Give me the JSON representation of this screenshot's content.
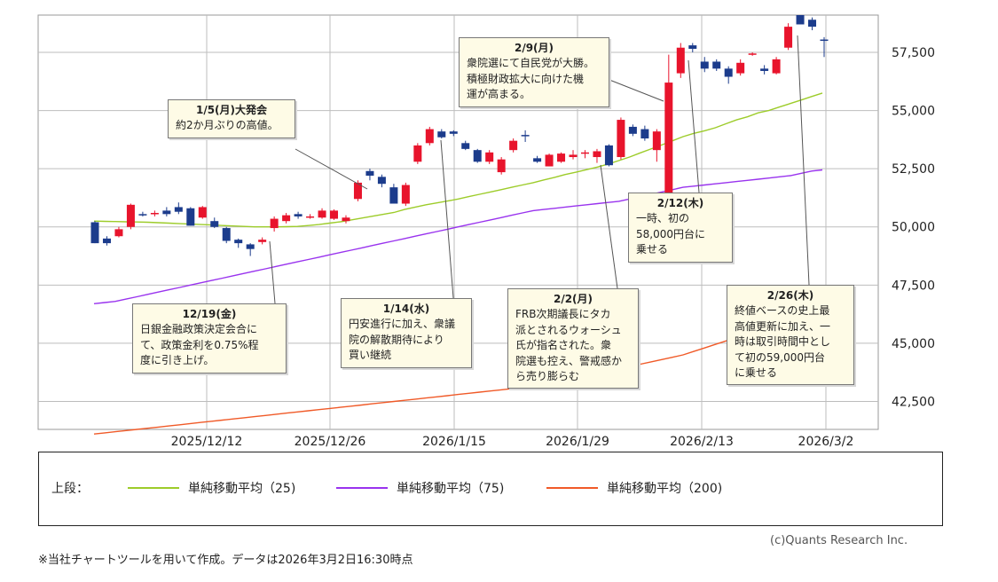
{
  "chart_data": {
    "type": "candlestick",
    "y_ticks": [
      42500,
      45000,
      47500,
      50000,
      52500,
      55000,
      57500
    ],
    "y_tick_labels": [
      "42,500",
      "45,000",
      "47,500",
      "50,000",
      "52,500",
      "55,000",
      "57,500"
    ],
    "ylim": [
      41300,
      59100
    ],
    "x_tick_labels": [
      "2025/12/12",
      "2025/12/26",
      "2026/1/15",
      "2026/1/29",
      "2026/2/13",
      "2026/3/2"
    ],
    "grid": true,
    "legend_placement": "bottom",
    "up_color": "#e8142c",
    "down_color": "#1c3c8c",
    "candles": [
      {
        "o": 50200,
        "h": 50250,
        "l": 49300,
        "c": 49300
      },
      {
        "o": 49500,
        "h": 49600,
        "l": 49200,
        "c": 49300
      },
      {
        "o": 49600,
        "h": 50000,
        "l": 49550,
        "c": 49900
      },
      {
        "o": 50000,
        "h": 51000,
        "l": 49900,
        "c": 50950
      },
      {
        "o": 50550,
        "h": 50650,
        "l": 50450,
        "c": 50500
      },
      {
        "o": 50550,
        "h": 50700,
        "l": 50450,
        "c": 50600
      },
      {
        "o": 50700,
        "h": 50850,
        "l": 50450,
        "c": 50550
      },
      {
        "o": 50850,
        "h": 51050,
        "l": 50550,
        "c": 50650
      },
      {
        "o": 50800,
        "h": 50850,
        "l": 50050,
        "c": 50050
      },
      {
        "o": 50400,
        "h": 50900,
        "l": 50350,
        "c": 50850
      },
      {
        "o": 50250,
        "h": 50400,
        "l": 49950,
        "c": 50000
      },
      {
        "o": 49950,
        "h": 50000,
        "l": 49300,
        "c": 49400
      },
      {
        "o": 49450,
        "h": 49500,
        "l": 49100,
        "c": 49300
      },
      {
        "o": 49250,
        "h": 49300,
        "l": 48750,
        "c": 49050
      },
      {
        "o": 49350,
        "h": 49550,
        "l": 49250,
        "c": 49450
      },
      {
        "o": 49950,
        "h": 50450,
        "l": 49800,
        "c": 50350
      },
      {
        "o": 50250,
        "h": 50600,
        "l": 50150,
        "c": 50500
      },
      {
        "o": 50550,
        "h": 50650,
        "l": 50350,
        "c": 50450
      },
      {
        "o": 50450,
        "h": 50550,
        "l": 50350,
        "c": 50450
      },
      {
        "o": 50400,
        "h": 50800,
        "l": 50350,
        "c": 50700
      },
      {
        "o": 50350,
        "h": 50750,
        "l": 50300,
        "c": 50700
      },
      {
        "o": 50250,
        "h": 50500,
        "l": 50150,
        "c": 50400
      },
      {
        "o": 51200,
        "h": 52000,
        "l": 51100,
        "c": 51900
      },
      {
        "o": 52400,
        "h": 52500,
        "l": 52000,
        "c": 52200
      },
      {
        "o": 52150,
        "h": 52250,
        "l": 51700,
        "c": 51850
      },
      {
        "o": 51700,
        "h": 51850,
        "l": 51000,
        "c": 51000
      },
      {
        "o": 51000,
        "h": 51900,
        "l": 50900,
        "c": 51800
      },
      {
        "o": 52800,
        "h": 53600,
        "l": 52700,
        "c": 53500
      },
      {
        "o": 53600,
        "h": 54300,
        "l": 53500,
        "c": 54200
      },
      {
        "o": 54100,
        "h": 54200,
        "l": 53800,
        "c": 53850
      },
      {
        "o": 54100,
        "h": 54150,
        "l": 53900,
        "c": 54000
      },
      {
        "o": 53600,
        "h": 53700,
        "l": 53300,
        "c": 53350
      },
      {
        "o": 53300,
        "h": 53350,
        "l": 52750,
        "c": 52800
      },
      {
        "o": 52800,
        "h": 53300,
        "l": 52700,
        "c": 53200
      },
      {
        "o": 52350,
        "h": 53000,
        "l": 52250,
        "c": 52900
      },
      {
        "o": 53300,
        "h": 53800,
        "l": 53200,
        "c": 53700
      },
      {
        "o": 53950,
        "h": 54150,
        "l": 53650,
        "c": 53900
      },
      {
        "o": 52950,
        "h": 53050,
        "l": 52750,
        "c": 52800
      },
      {
        "o": 52600,
        "h": 53150,
        "l": 52600,
        "c": 53100
      },
      {
        "o": 52800,
        "h": 53200,
        "l": 52750,
        "c": 53150
      },
      {
        "o": 53000,
        "h": 53300,
        "l": 52900,
        "c": 53100
      },
      {
        "o": 53150,
        "h": 53300,
        "l": 52950,
        "c": 53200
      },
      {
        "o": 53000,
        "h": 53350,
        "l": 52750,
        "c": 53250
      },
      {
        "o": 53500,
        "h": 53550,
        "l": 52600,
        "c": 52650
      },
      {
        "o": 53000,
        "h": 54700,
        "l": 52900,
        "c": 54600
      },
      {
        "o": 54300,
        "h": 54400,
        "l": 53900,
        "c": 54000
      },
      {
        "o": 54200,
        "h": 54350,
        "l": 53700,
        "c": 53800
      },
      {
        "o": 53300,
        "h": 54200,
        "l": 52800,
        "c": 54100
      },
      {
        "o": 50900,
        "h": 57400,
        "l": 50800,
        "c": 56200
      },
      {
        "o": 56600,
        "h": 57900,
        "l": 56400,
        "c": 57700
      },
      {
        "o": 57800,
        "h": 57900,
        "l": 57500,
        "c": 57650
      },
      {
        "o": 57100,
        "h": 57300,
        "l": 56650,
        "c": 56800
      },
      {
        "o": 57100,
        "h": 57200,
        "l": 56700,
        "c": 56800
      },
      {
        "o": 56800,
        "h": 56900,
        "l": 56150,
        "c": 56450
      },
      {
        "o": 56600,
        "h": 57200,
        "l": 56500,
        "c": 57050
      },
      {
        "o": 57450,
        "h": 57500,
        "l": 57350,
        "c": 57450
      },
      {
        "o": 56800,
        "h": 56950,
        "l": 56550,
        "c": 56700
      },
      {
        "o": 56600,
        "h": 57300,
        "l": 56550,
        "c": 57200
      },
      {
        "o": 57700,
        "h": 58750,
        "l": 57600,
        "c": 58600
      },
      {
        "o": 59100,
        "h": 59100,
        "l": 58700,
        "c": 58700
      },
      {
        "o": 58900,
        "h": 59000,
        "l": 58450,
        "c": 58600
      },
      {
        "o": 58050,
        "h": 58150,
        "l": 57300,
        "c": 58000
      }
    ],
    "series": [
      {
        "name": "単純移動平均（25)",
        "color": "#9dcc2a",
        "values": [
          50250,
          50240,
          50230,
          50220,
          50210,
          50200,
          50180,
          50160,
          50140,
          50120,
          50100,
          50080,
          50060,
          50040,
          50020,
          50000,
          50000,
          50000,
          50010,
          50020,
          50060,
          50100,
          50160,
          50220,
          50300,
          50380,
          50460,
          50540,
          50620,
          50750,
          50850,
          50950,
          51030,
          51110,
          51200,
          51300,
          51400,
          51500,
          51600,
          51700,
          51800,
          51900,
          52020,
          52130,
          52250,
          52350,
          52460,
          52570,
          52700,
          52850,
          53000,
          53180,
          53350,
          53520,
          53700,
          53880,
          54020,
          54130,
          54260,
          54430,
          54600,
          54730,
          54900,
          55000,
          55150,
          55300,
          55450,
          55600,
          55750
        ]
      },
      {
        "name": "単純移動平均（75)",
        "color": "#9933ee",
        "values": [
          46700,
          46750,
          46800,
          46900,
          47000,
          47100,
          47200,
          47300,
          47400,
          47500,
          47600,
          47700,
          47800,
          47900,
          48000,
          48100,
          48200,
          48300,
          48400,
          48500,
          48600,
          48700,
          48800,
          48900,
          49000,
          49100,
          49200,
          49300,
          49400,
          49500,
          49600,
          49700,
          49800,
          49900,
          50000,
          50100,
          50200,
          50300,
          50400,
          50500,
          50600,
          50700,
          50750,
          50800,
          50850,
          50900,
          50950,
          51000,
          51050,
          51100,
          51200,
          51300,
          51400,
          51500,
          51600,
          51700,
          51750,
          51800,
          51850,
          51900,
          51950,
          52000,
          52050,
          52100,
          52150,
          52200,
          52300,
          52400,
          52450
        ]
      },
      {
        "name": "単純移動平均（200)",
        "color": "#f05a28",
        "values": [
          41100,
          41150,
          41200,
          41250,
          41300,
          41350,
          41400,
          41450,
          41500,
          41550,
          41600,
          41650,
          41700,
          41750,
          41800,
          41850,
          41900,
          41950,
          42000,
          42050,
          42100,
          42150,
          42200,
          42250,
          42300,
          42350,
          42400,
          42450,
          42500,
          42550,
          42600,
          42650,
          42700,
          42750,
          42800,
          42850,
          42900,
          42950,
          43000,
          43050,
          43100,
          43150,
          43200,
          43300,
          43400,
          43500,
          43600,
          43700,
          43800,
          43900,
          44000,
          44100,
          44200,
          44300,
          44400,
          44500,
          44650,
          44800,
          44950,
          45100,
          45250,
          45400,
          45550,
          45700,
          45850,
          46000,
          46150,
          46300,
          46450
        ]
      }
    ],
    "annotations": [
      {
        "date": "1/5(月)大発会",
        "text": "約2か月ぶりの高値。"
      },
      {
        "date": "2/9(月)",
        "text": "衆院選にて自民党が大勝。\n積極財政拡大に向けた機\n運が高まる。"
      },
      {
        "date": "2/12(木)",
        "text": "一時、初の\n58,000円台に\n乗せる"
      },
      {
        "date": "12/19(金)",
        "text": "日銀金融政策決定会合に\nて、政策金利を0.75%程\n度に引き上げ。"
      },
      {
        "date": "1/14(水)",
        "text": "円安進行に加え、衆議\n院の解散期待により\n買い継続"
      },
      {
        "date": "2/2(月)",
        "text": "FRB次期議長にタカ\n派とされるウォーシュ\n氏が指名された。衆\n院選も控え、警戒感か\nら売り膨らむ"
      },
      {
        "date": "2/26(木)",
        "text": "終値ベースの史上最\n高値更新に加え、一\n時は取引時間中とし\nて初の59,000円台\nに乗せる"
      }
    ]
  },
  "legend": {
    "prefix": "上段："
  },
  "credit": "(c)Quants Research Inc.",
  "note": "※当社チャートツールを用いて作成。データは2026年3月2日16:30時点"
}
